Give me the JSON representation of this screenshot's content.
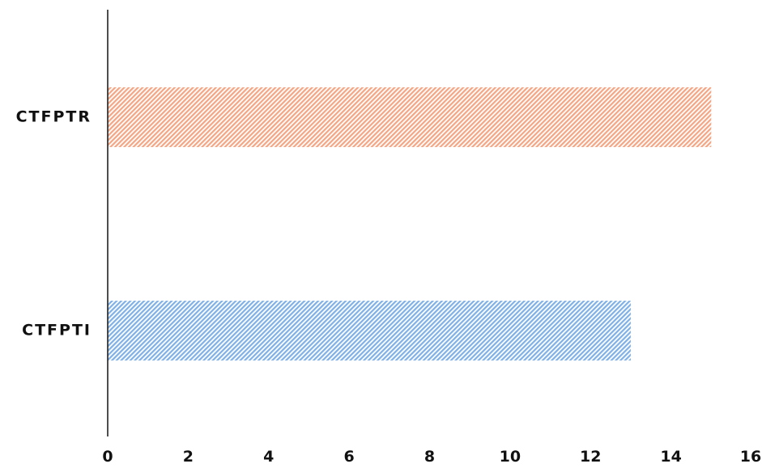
{
  "chart_data": {
    "type": "bar",
    "orientation": "horizontal",
    "categories": [
      "CTFPTR",
      "CTFPTI"
    ],
    "values": [
      15,
      13
    ],
    "bar_colors": [
      "#f4a584",
      "#7fb0e6"
    ],
    "fill_style": "diagonal-hatch",
    "xlim": [
      0,
      16
    ],
    "xticks": [
      0,
      2,
      4,
      6,
      8,
      10,
      12,
      14,
      16
    ],
    "grid": false,
    "title": "",
    "xlabel": "",
    "ylabel": ""
  }
}
